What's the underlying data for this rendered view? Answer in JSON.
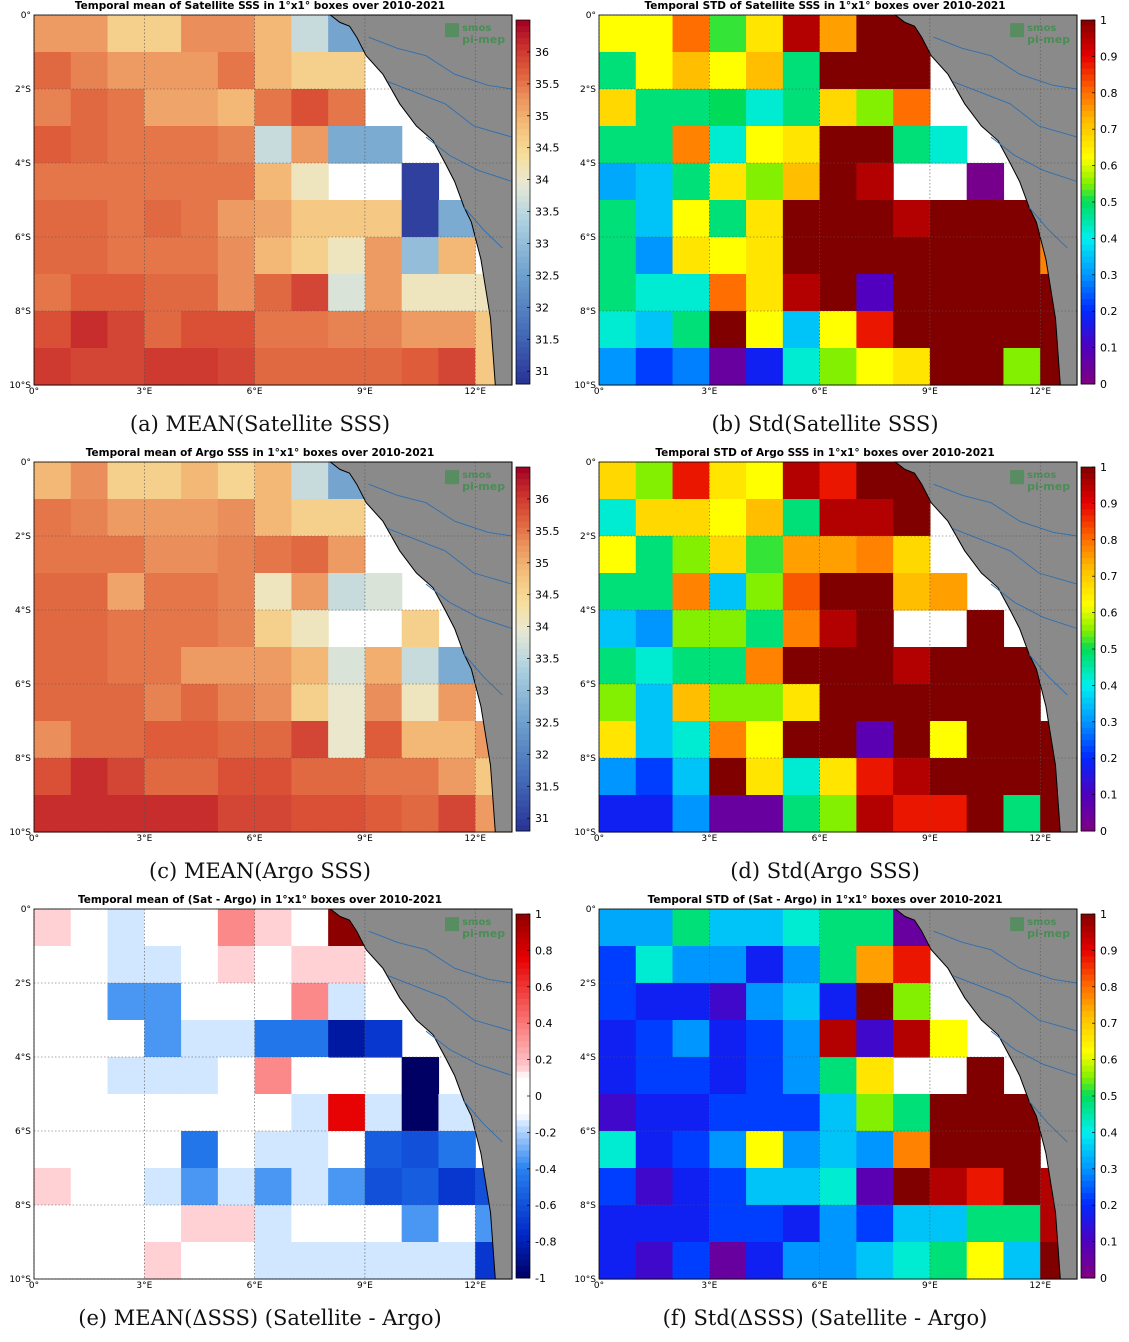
{
  "panels": [
    {
      "title": "Temporal mean of Satellite SSS in 1°x1° boxes over 2010-2021",
      "caption": "(a) MEAN(Satellite SSS)",
      "cmap": "sss",
      "vmin": 30.8,
      "vmax": 36.5,
      "cbar_ticks": [
        "36",
        "35.5",
        "35",
        "34.5",
        "34",
        "33.5",
        "33",
        "32.5",
        "32",
        "31.5",
        "31"
      ],
      "cbar_values": [
        36,
        35.5,
        35,
        34.5,
        34,
        33.5,
        33,
        32.5,
        32,
        31.5,
        31
      ],
      "grid": [
        [
          35.2,
          35.2,
          34.6,
          34.6,
          35.3,
          35.3,
          34.9,
          33.6,
          32.6,
          null,
          null,
          null,
          null
        ],
        [
          35.6,
          35.4,
          35.2,
          35.2,
          35.2,
          35.5,
          34.9,
          34.6,
          34.6,
          null,
          null,
          null,
          null
        ],
        [
          35.4,
          35.6,
          35.5,
          35.1,
          35.1,
          34.9,
          35.5,
          35.8,
          35.5,
          null,
          null,
          null,
          null
        ],
        [
          35.7,
          35.6,
          35.5,
          35.5,
          35.5,
          35.4,
          33.6,
          35.2,
          32.7,
          32.7,
          null,
          null,
          null
        ],
        [
          35.5,
          35.5,
          35.5,
          35.5,
          35.5,
          35.5,
          34.9,
          34.1,
          null,
          null,
          31.0,
          null,
          null
        ],
        [
          35.6,
          35.6,
          35.5,
          35.6,
          35.5,
          35.2,
          35.1,
          34.7,
          34.7,
          34.7,
          31.0,
          32.7,
          null
        ],
        [
          35.6,
          35.6,
          35.5,
          35.5,
          35.5,
          35.3,
          34.9,
          34.6,
          34.1,
          35.2,
          33.0,
          34.9,
          null
        ],
        [
          35.5,
          35.7,
          35.7,
          35.6,
          35.6,
          35.3,
          35.6,
          35.9,
          33.8,
          35.2,
          34.1,
          34.1,
          34.1
        ],
        [
          35.8,
          36.1,
          35.9,
          35.6,
          35.8,
          35.8,
          35.5,
          35.5,
          35.4,
          35.4,
          35.2,
          35.2,
          34.7
        ],
        [
          36.0,
          35.9,
          35.9,
          36.0,
          36.0,
          35.9,
          35.6,
          35.6,
          35.6,
          35.6,
          35.7,
          35.9,
          34.7
        ]
      ]
    },
    {
      "title": "Temporal STD of Satellite SSS in 1°x1° boxes over 2010-2021",
      "caption": "(b) Std(Satellite SSS)",
      "cmap": "jet",
      "vmin": 0,
      "vmax": 1,
      "cbar_ticks": [
        "1",
        "0.9",
        "0.8",
        "0.7",
        "0.6",
        "0.5",
        "0.4",
        "0.3",
        "0.2",
        "0.1",
        "0"
      ],
      "cbar_values": [
        1,
        0.9,
        0.8,
        0.7,
        0.6,
        0.5,
        0.4,
        0.3,
        0.2,
        0.1,
        0
      ],
      "grid": [
        [
          0.62,
          0.62,
          0.8,
          0.52,
          0.66,
          0.95,
          0.75,
          1.0,
          1.0,
          null,
          null,
          null,
          null
        ],
        [
          0.48,
          0.62,
          0.72,
          0.62,
          0.72,
          0.48,
          1.0,
          1.0,
          1.0,
          null,
          null,
          null,
          null
        ],
        [
          0.68,
          0.48,
          0.48,
          0.5,
          0.42,
          0.48,
          0.68,
          0.55,
          0.8,
          null,
          null,
          null,
          null
        ],
        [
          0.48,
          0.48,
          0.78,
          0.42,
          0.62,
          0.66,
          1.0,
          1.0,
          0.48,
          0.42,
          null,
          null,
          null
        ],
        [
          0.32,
          0.35,
          0.48,
          0.66,
          0.55,
          0.72,
          1.0,
          0.95,
          null,
          null,
          0.02,
          null,
          null
        ],
        [
          0.48,
          0.35,
          0.62,
          0.48,
          0.66,
          1.0,
          1.0,
          1.0,
          0.95,
          1.0,
          1.0,
          1.0,
          null
        ],
        [
          0.48,
          0.3,
          0.66,
          0.62,
          0.66,
          1.0,
          1.0,
          1.0,
          1.0,
          1.0,
          1.0,
          1.0,
          0.78
        ],
        [
          0.48,
          0.42,
          0.42,
          0.8,
          0.66,
          0.95,
          1.0,
          0.1,
          1.0,
          1.0,
          1.0,
          1.0,
          1.0
        ],
        [
          0.42,
          0.35,
          0.48,
          1.0,
          0.62,
          0.35,
          0.62,
          0.88,
          1.0,
          1.0,
          1.0,
          1.0,
          1.0
        ],
        [
          0.3,
          0.22,
          0.28,
          0.05,
          0.18,
          0.42,
          0.55,
          0.62,
          0.66,
          1.0,
          1.0,
          0.55,
          1.0
        ]
      ]
    },
    {
      "title": "Temporal mean of Argo SSS in 1°x1° boxes over 2010-2021",
      "caption": "(c) MEAN(Argo SSS)",
      "cmap": "sss",
      "vmin": 30.8,
      "vmax": 36.5,
      "cbar_ticks": [
        "36",
        "35.5",
        "35",
        "34.5",
        "34",
        "33.5",
        "33",
        "32.5",
        "32",
        "31.5",
        "31"
      ],
      "cbar_values": [
        36,
        35.5,
        35,
        34.5,
        34,
        33.5,
        33,
        32.5,
        32,
        31.5,
        31
      ],
      "grid": [
        [
          34.9,
          35.3,
          34.6,
          34.6,
          34.9,
          34.5,
          34.9,
          33.6,
          32.6,
          null,
          null,
          null,
          null
        ],
        [
          35.5,
          35.4,
          35.2,
          35.2,
          35.2,
          35.3,
          34.9,
          34.6,
          34.6,
          null,
          null,
          null,
          null
        ],
        [
          35.5,
          35.5,
          35.5,
          35.3,
          35.3,
          35.4,
          35.5,
          35.6,
          35.2,
          null,
          null,
          null,
          null
        ],
        [
          35.6,
          35.6,
          35.1,
          35.5,
          35.5,
          35.4,
          34.1,
          35.2,
          33.6,
          33.8,
          null,
          null,
          null
        ],
        [
          35.6,
          35.6,
          35.5,
          35.5,
          35.5,
          35.4,
          34.6,
          34.1,
          null,
          null,
          34.6,
          null,
          null
        ],
        [
          35.6,
          35.6,
          35.5,
          35.5,
          35.2,
          35.2,
          35.2,
          34.9,
          33.8,
          35.0,
          33.6,
          32.7,
          null
        ],
        [
          35.6,
          35.6,
          35.6,
          35.4,
          35.6,
          35.4,
          35.3,
          34.6,
          34.0,
          35.3,
          34.1,
          35.2,
          null
        ],
        [
          35.3,
          35.6,
          35.6,
          35.7,
          35.7,
          35.6,
          35.6,
          35.9,
          34.0,
          35.7,
          34.9,
          34.9,
          35.2
        ],
        [
          35.8,
          36.1,
          35.9,
          35.6,
          35.6,
          35.8,
          35.8,
          35.6,
          35.6,
          35.5,
          35.5,
          35.2,
          34.7
        ],
        [
          36.1,
          36.1,
          36.1,
          36.1,
          36.1,
          35.9,
          35.9,
          35.8,
          35.8,
          35.7,
          35.6,
          35.9,
          35.2
        ]
      ]
    },
    {
      "title": "Temporal STD of Argo SSS in 1°x1° boxes over 2010-2021",
      "caption": "(d) Std(Argo SSS)",
      "cmap": "jet",
      "vmin": 0,
      "vmax": 1,
      "cbar_ticks": [
        "1",
        "0.9",
        "0.8",
        "0.7",
        "0.6",
        "0.5",
        "0.4",
        "0.3",
        "0.2",
        "0.1",
        "0"
      ],
      "cbar_values": [
        1,
        0.9,
        0.8,
        0.7,
        0.6,
        0.5,
        0.4,
        0.3,
        0.2,
        0.1,
        0
      ],
      "grid": [
        [
          0.68,
          0.55,
          0.88,
          0.66,
          0.62,
          0.95,
          0.88,
          1.0,
          1.0,
          null,
          null,
          null,
          null
        ],
        [
          0.42,
          0.68,
          0.68,
          0.62,
          0.72,
          0.48,
          0.95,
          0.95,
          1.0,
          null,
          null,
          null,
          null
        ],
        [
          0.62,
          0.48,
          0.55,
          0.68,
          0.52,
          0.75,
          0.75,
          0.78,
          0.68,
          null,
          null,
          null,
          null
        ],
        [
          0.48,
          0.48,
          0.78,
          0.35,
          0.55,
          0.82,
          1.0,
          1.0,
          0.72,
          0.75,
          null,
          null,
          null
        ],
        [
          0.35,
          0.3,
          0.55,
          0.55,
          0.48,
          0.78,
          0.95,
          1.0,
          null,
          null,
          1.0,
          null,
          null
        ],
        [
          0.48,
          0.42,
          0.48,
          0.48,
          0.78,
          1.0,
          1.0,
          1.0,
          0.95,
          1.0,
          1.0,
          1.0,
          null
        ],
        [
          0.55,
          0.35,
          0.72,
          0.55,
          0.55,
          0.66,
          1.0,
          1.0,
          1.0,
          1.0,
          1.0,
          1.0,
          null
        ],
        [
          0.66,
          0.35,
          0.42,
          0.78,
          0.62,
          1.0,
          1.0,
          0.08,
          1.0,
          0.62,
          1.0,
          1.0,
          1.0
        ],
        [
          0.3,
          0.22,
          0.35,
          1.0,
          0.66,
          0.42,
          0.66,
          0.88,
          0.95,
          1.0,
          1.0,
          1.0,
          1.0
        ],
        [
          0.18,
          0.18,
          0.3,
          0.05,
          0.05,
          0.48,
          0.55,
          0.95,
          0.88,
          0.88,
          1.0,
          0.48,
          1.0
        ]
      ]
    },
    {
      "title": "Temporal mean of (Sat - Argo) in 1°x1° boxes over 2010-2021",
      "caption": "(e) MEAN(ΔSSS) (Satellite - Argo)",
      "cmap": "bwr",
      "vmin": -1,
      "vmax": 1,
      "cbar_ticks": [
        "1",
        "0.8",
        "0.6",
        "0.4",
        "0.2",
        "0",
        "-0.2",
        "-0.4",
        "-0.6",
        "-0.8",
        "-1"
      ],
      "cbar_values": [
        1,
        0.8,
        0.6,
        0.4,
        0.2,
        0,
        -0.2,
        -0.4,
        -0.6,
        -0.8,
        -1
      ],
      "grid": [
        [
          0.15,
          0,
          -0.15,
          0,
          0,
          0.35,
          0.15,
          0,
          1.0,
          null,
          null,
          null,
          null
        ],
        [
          0,
          0,
          -0.15,
          -0.15,
          0,
          0.15,
          0,
          0.15,
          0.15,
          null,
          null,
          null,
          null
        ],
        [
          0,
          0,
          -0.35,
          -0.35,
          0,
          0,
          0,
          0.35,
          -0.15,
          null,
          null,
          null,
          null
        ],
        [
          0,
          0,
          0,
          -0.35,
          -0.15,
          -0.15,
          -0.45,
          -0.45,
          -0.85,
          -0.7,
          null,
          null,
          null
        ],
        [
          0,
          0,
          -0.15,
          -0.15,
          -0.15,
          0,
          0.35,
          0,
          null,
          null,
          -1.0,
          null,
          null
        ],
        [
          0,
          0,
          0,
          0,
          0,
          0,
          0,
          -0.15,
          0.75,
          -0.15,
          -1.0,
          -0.15,
          null
        ],
        [
          0,
          0,
          0,
          0,
          -0.45,
          0,
          -0.15,
          -0.15,
          0,
          -0.55,
          -0.6,
          -0.45,
          null
        ],
        [
          0.15,
          0,
          0,
          -0.15,
          -0.35,
          -0.15,
          -0.35,
          -0.15,
          -0.35,
          -0.6,
          -0.55,
          -0.7,
          -0.6
        ],
        [
          0,
          0,
          0,
          0,
          0.15,
          0.15,
          -0.15,
          0,
          0,
          0,
          -0.35,
          0,
          -0.35
        ],
        [
          0,
          0,
          0,
          0.15,
          0,
          0,
          -0.15,
          -0.15,
          -0.15,
          -0.15,
          -0.15,
          -0.15,
          -0.7
        ]
      ]
    },
    {
      "title": "Temporal STD of (Sat - Argo) in 1°x1° boxes over 2010-2021",
      "caption": "(f) Std(ΔSSS) (Satellite - Argo)",
      "cmap": "jet",
      "vmin": 0,
      "vmax": 1,
      "cbar_ticks": [
        "1",
        "0.9",
        "0.8",
        "0.7",
        "0.6",
        "0.5",
        "0.4",
        "0.3",
        "0.2",
        "0.1",
        "0"
      ],
      "cbar_values": [
        1,
        0.9,
        0.8,
        0.7,
        0.6,
        0.5,
        0.4,
        0.3,
        0.2,
        0.1,
        0
      ],
      "grid": [
        [
          0.32,
          0.32,
          0.48,
          0.35,
          0.35,
          0.42,
          0.48,
          0.48,
          0.05,
          null,
          null,
          null,
          null
        ],
        [
          0.22,
          0.42,
          0.3,
          0.3,
          0.18,
          0.3,
          0.48,
          0.75,
          0.88,
          null,
          null,
          null,
          null
        ],
        [
          0.22,
          0.18,
          0.18,
          0.12,
          0.3,
          0.35,
          0.18,
          1.0,
          0.55,
          null,
          null,
          null,
          null
        ],
        [
          0.18,
          0.22,
          0.3,
          0.18,
          0.22,
          0.3,
          0.95,
          0.12,
          0.95,
          0.62,
          null,
          null,
          null
        ],
        [
          0.18,
          0.22,
          0.22,
          0.18,
          0.22,
          0.3,
          0.48,
          0.66,
          null,
          null,
          1.0,
          null,
          null
        ],
        [
          0.12,
          0.18,
          0.18,
          0.22,
          0.22,
          0.22,
          0.35,
          0.55,
          0.48,
          1.0,
          1.0,
          1.0,
          null
        ],
        [
          0.42,
          0.18,
          0.22,
          0.3,
          0.62,
          0.3,
          0.35,
          0.3,
          0.78,
          1.0,
          1.0,
          1.0,
          null
        ],
        [
          0.22,
          0.12,
          0.18,
          0.22,
          0.35,
          0.35,
          0.42,
          0.08,
          1.0,
          0.95,
          0.88,
          1.0,
          0.95
        ],
        [
          0.18,
          0.18,
          0.18,
          0.22,
          0.22,
          0.18,
          0.3,
          0.22,
          0.35,
          0.35,
          0.48,
          0.48,
          0.95
        ],
        [
          0.18,
          0.12,
          0.22,
          0.05,
          0.18,
          0.3,
          0.3,
          0.35,
          0.42,
          0.48,
          0.62,
          0.35,
          1.0
        ]
      ]
    }
  ],
  "chart_data": [
    {
      "type": "heatmap",
      "title": "Temporal mean of Satellite SSS in 1°x1° boxes over 2010-2021",
      "ylim": [
        -10,
        0
      ],
      "xlim": [
        0,
        13
      ],
      "x_ticks": [
        "0°",
        "3°E",
        "6°E",
        "9°E",
        "12°E"
      ],
      "y_ticks": [
        "0°",
        "2°S",
        "4°S",
        "6°S",
        "8°S",
        "10°S"
      ],
      "colorbar_range": [
        30.8,
        36.5
      ]
    },
    {
      "type": "heatmap",
      "title": "Temporal STD of Satellite SSS in 1°x1° boxes over 2010-2021",
      "ylim": [
        -10,
        0
      ],
      "xlim": [
        0,
        13
      ],
      "colorbar_range": [
        0,
        1
      ]
    },
    {
      "type": "heatmap",
      "title": "Temporal mean of Argo SSS in 1°x1° boxes over 2010-2021",
      "ylim": [
        -10,
        0
      ],
      "xlim": [
        0,
        13
      ],
      "colorbar_range": [
        30.8,
        36.5
      ]
    },
    {
      "type": "heatmap",
      "title": "Temporal STD of Argo SSS in 1°x1° boxes over 2010-2021",
      "ylim": [
        -10,
        0
      ],
      "xlim": [
        0,
        13
      ],
      "colorbar_range": [
        0,
        1
      ]
    },
    {
      "type": "heatmap",
      "title": "Temporal mean of (Sat - Argo) in 1°x1° boxes over 2010-2021",
      "ylim": [
        -10,
        0
      ],
      "xlim": [
        0,
        13
      ],
      "colorbar_range": [
        -1,
        1
      ]
    },
    {
      "type": "heatmap",
      "title": "Temporal STD of (Sat - Argo) in 1°x1° boxes over 2010-2021",
      "ylim": [
        -10,
        0
      ],
      "xlim": [
        0,
        13
      ],
      "colorbar_range": [
        0,
        1
      ]
    }
  ],
  "axes": {
    "x_ticks": [
      "0°",
      "3°E",
      "6°E",
      "9°E",
      "12°E"
    ],
    "x_values": [
      0,
      3,
      6,
      9,
      12
    ],
    "y_ticks": [
      "0°",
      "2°S",
      "4°S",
      "6°S",
      "8°S",
      "10°S"
    ],
    "y_values": [
      0,
      2,
      4,
      6,
      8,
      10
    ]
  },
  "logo": {
    "line1": "smos",
    "line2": "pi-mep"
  },
  "colors": {
    "land": "#8a8a8a",
    "coast": "#000000",
    "river": "#2e6fb0",
    "nodata": "#ffffff",
    "logo": "#2f8f3f"
  }
}
